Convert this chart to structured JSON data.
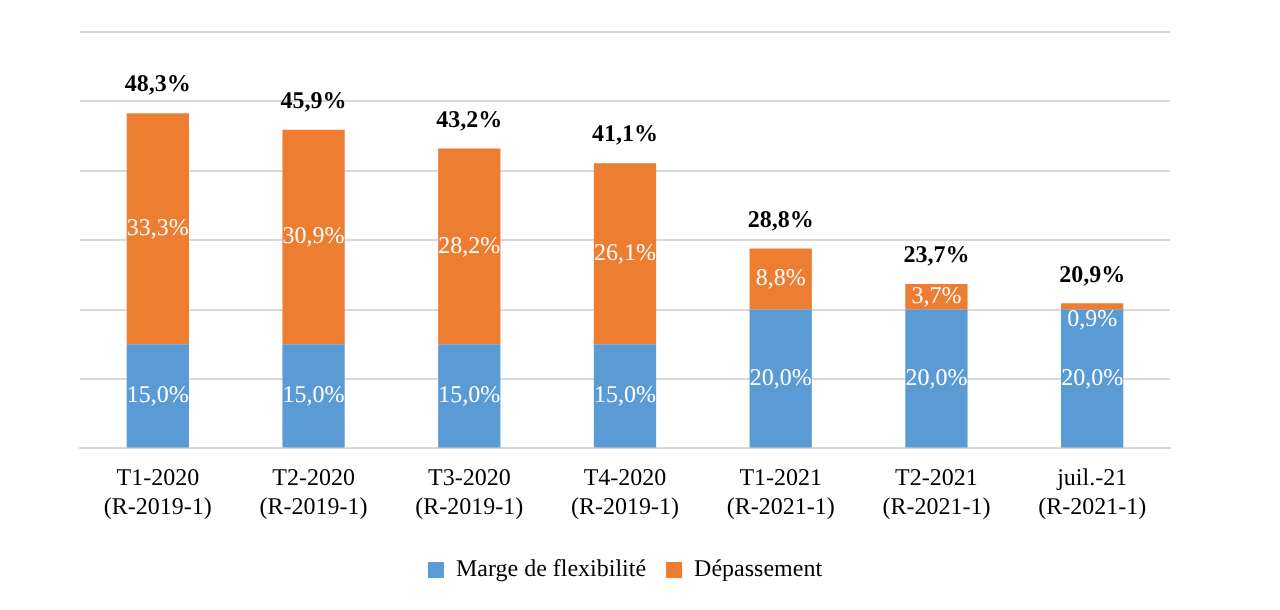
{
  "chart_data": {
    "type": "bar",
    "stacked": true,
    "categories": [
      "T1-2020\n(R-2019-1)",
      "T2-2020\n(R-2019-1)",
      "T3-2020\n(R-2019-1)",
      "T4-2020\n(R-2019-1)",
      "T1-2021\n(R-2021-1)",
      "T2-2021\n(R-2021-1)",
      "juil.-21\n(R-2021-1)"
    ],
    "series": [
      {
        "name": "Marge de flexibilité",
        "color": "#5b9bd5",
        "values": [
          15.0,
          15.0,
          15.0,
          15.0,
          20.0,
          20.0,
          20.0
        ],
        "value_labels": [
          "15,0%",
          "15,0%",
          "15,0%",
          "15,0%",
          "20,0%",
          "20,0%",
          "20,0%"
        ]
      },
      {
        "name": "Dépassement",
        "color": "#ed7d31",
        "values": [
          33.3,
          30.9,
          28.2,
          26.1,
          8.8,
          3.7,
          0.9
        ],
        "value_labels": [
          "33,3%",
          "30,9%",
          "28,2%",
          "26,1%",
          "8,8%",
          "3,7%",
          "0,9%"
        ]
      }
    ],
    "totals": [
      "48,3%",
      "45,9%",
      "43,2%",
      "41,1%",
      "28,8%",
      "23,7%",
      "20,9%"
    ],
    "tick_labels": "x",
    "grid": "y",
    "legend": "bottom"
  }
}
